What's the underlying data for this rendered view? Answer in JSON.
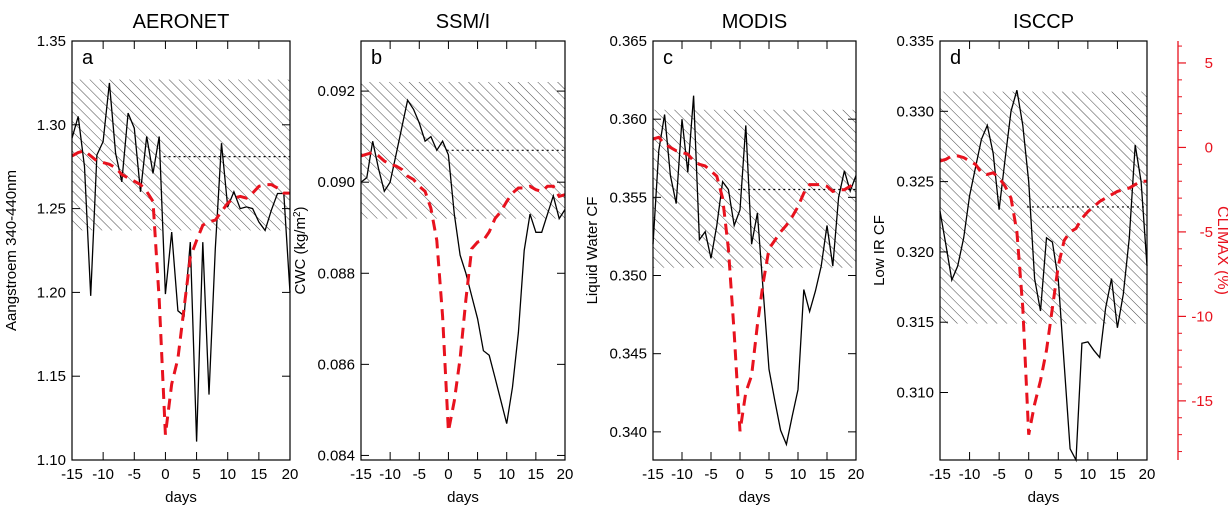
{
  "figure": {
    "colors": {
      "axis": "#000000",
      "series_data": "#000000",
      "climax": "#e8121e",
      "hatch": "#333333"
    },
    "right_axis": {
      "label": "CLIMAX (%)",
      "ticks": [
        5,
        0,
        -5,
        -10,
        -15
      ],
      "ylim": [
        -18.5,
        6.3
      ]
    }
  },
  "chart_data": [
    {
      "type": "line",
      "title": "AERONET",
      "panel_letter": "a",
      "xlabel": "days",
      "ylabel": "Aangstroem 340-440nm",
      "xlim": [
        -15,
        20
      ],
      "ylim": [
        1.1,
        1.35
      ],
      "xticks": [
        "-15",
        "-10",
        "-5",
        "0",
        "5",
        "10",
        "15",
        "20"
      ],
      "xtick_values": [
        -15,
        -10,
        -5,
        0,
        5,
        10,
        15,
        20
      ],
      "yticks": [
        "1.10",
        "1.15",
        "1.20",
        "1.25",
        "1.30",
        "1.35"
      ],
      "ytick_values": [
        1.1,
        1.15,
        1.2,
        1.25,
        1.3,
        1.35
      ],
      "band": [
        1.237,
        1.327
      ],
      "mean_line": 1.281,
      "x": [
        -15,
        -14,
        -13,
        -12,
        -11,
        -10,
        -9,
        -8,
        -7,
        -6,
        -5,
        -4,
        -3,
        -2,
        -1,
        0,
        1,
        2,
        3,
        4,
        5,
        6,
        7,
        8,
        9,
        10,
        11,
        12,
        13,
        14,
        15,
        16,
        17,
        18,
        19,
        20
      ],
      "series": [
        {
          "values": [
            1.292,
            1.305,
            1.275,
            1.198,
            1.282,
            1.29,
            1.325,
            1.283,
            1.266,
            1.307,
            1.298,
            1.26,
            1.293,
            1.271,
            1.293,
            1.199,
            1.236,
            1.189,
            1.186,
            1.23,
            1.111,
            1.23,
            1.139,
            1.226,
            1.289,
            1.251,
            1.26,
            1.25,
            1.251,
            1.25,
            1.242,
            1.237,
            1.249,
            1.259,
            1.259,
            1.2
          ]
        },
        {
          "name": "CLIMAX",
          "axis": "right",
          "values": [
            -0.5,
            -0.3,
            -0.2,
            -0.5,
            -0.8,
            -0.9,
            -1.0,
            -1.2,
            -1.6,
            -1.8,
            -2.0,
            -2.2,
            -2.6,
            -3.2,
            -9.0,
            -17.0,
            -14.0,
            -12.5,
            -9.5,
            -6.5,
            -5.5,
            -4.6,
            -4.4,
            -4.3,
            -3.8,
            -3.3,
            -3.0,
            -2.9,
            -3.0,
            -2.7,
            -2.3,
            -2.2,
            -2.2,
            -2.4,
            -2.7,
            -2.7
          ]
        }
      ]
    },
    {
      "type": "line",
      "title": "SSM/I",
      "panel_letter": "b",
      "xlabel": "days",
      "ylabel": "CWC (kg/m",
      "ylabel_sup": "2",
      "ylabel_end": ")",
      "xlim": [
        -15,
        20
      ],
      "ylim": [
        0.0839,
        0.0931
      ],
      "xticks": [
        "-15",
        "-10",
        "-5",
        "0",
        "5",
        "10",
        "15",
        "20"
      ],
      "xtick_values": [
        -15,
        -10,
        -5,
        0,
        5,
        10,
        15,
        20
      ],
      "yticks": [
        "0.084",
        "0.086",
        "0.088",
        "0.090",
        "0.092"
      ],
      "ytick_values": [
        0.084,
        0.086,
        0.088,
        0.09,
        0.092
      ],
      "band": [
        0.0892,
        0.0922
      ],
      "mean_line": 0.0907,
      "x": [
        -15,
        -14,
        -13,
        -12,
        -11,
        -10,
        -9,
        -8,
        -7,
        -6,
        -5,
        -4,
        -3,
        -2,
        -1,
        0,
        1,
        2,
        3,
        4,
        5,
        6,
        7,
        8,
        9,
        10,
        11,
        12,
        13,
        14,
        15,
        16,
        17,
        18,
        19,
        20
      ],
      "series": [
        {
          "values": [
            0.09,
            0.0901,
            0.0909,
            0.0903,
            0.0898,
            0.09,
            0.0906,
            0.0912,
            0.0918,
            0.0916,
            0.0913,
            0.0909,
            0.091,
            0.0907,
            0.0909,
            0.0906,
            0.0893,
            0.0884,
            0.088,
            0.0875,
            0.087,
            0.0863,
            0.0862,
            0.0857,
            0.0852,
            0.0847,
            0.0855,
            0.0867,
            0.0885,
            0.0893,
            0.0889,
            0.0889,
            0.0893,
            0.0897,
            0.0892,
            0.0894
          ]
        },
        {
          "name": "CLIMAX",
          "axis": "right",
          "values": [
            -0.5,
            -0.4,
            -0.3,
            -0.5,
            -0.8,
            -1.0,
            -1.1,
            -1.3,
            -1.7,
            -1.9,
            -2.3,
            -2.6,
            -3.6,
            -5.5,
            -10.0,
            -16.8,
            -15.0,
            -12.5,
            -9.0,
            -6.0,
            -5.6,
            -5.5,
            -5.0,
            -4.2,
            -3.8,
            -3.2,
            -2.7,
            -2.4,
            -2.4,
            -2.3,
            -2.5,
            -2.6,
            -2.3,
            -2.3,
            -2.9,
            -2.8
          ]
        }
      ]
    },
    {
      "type": "line",
      "title": "MODIS",
      "panel_letter": "c",
      "xlabel": "days",
      "ylabel": "Liquid Water CF",
      "xlim": [
        -15,
        20
      ],
      "ylim": [
        0.3382,
        0.365
      ],
      "xticks": [
        "-15",
        "-10",
        "-5",
        "0",
        "5",
        "10",
        "15",
        "20"
      ],
      "xtick_values": [
        -15,
        -10,
        -5,
        0,
        5,
        10,
        15,
        20
      ],
      "yticks": [
        "0.340",
        "0.345",
        "0.350",
        "0.355",
        "0.360",
        "0.365"
      ],
      "ytick_values": [
        0.34,
        0.345,
        0.35,
        0.355,
        0.36,
        0.365
      ],
      "band": [
        0.3505,
        0.3606
      ],
      "mean_line": 0.3555,
      "x": [
        -15,
        -14,
        -13,
        -12,
        -11,
        -10,
        -9,
        -8,
        -7,
        -6,
        -5,
        -4,
        -3,
        -2,
        -1,
        0,
        1,
        2,
        3,
        4,
        5,
        6,
        7,
        8,
        9,
        10,
        11,
        12,
        13,
        14,
        15,
        16,
        17,
        18,
        19,
        20
      ],
      "series": [
        {
          "values": [
            0.352,
            0.358,
            0.3603,
            0.3564,
            0.3546,
            0.36,
            0.3566,
            0.3615,
            0.3523,
            0.3528,
            0.3511,
            0.3532,
            0.356,
            0.3555,
            0.3532,
            0.3542,
            0.3596,
            0.352,
            0.354,
            0.349,
            0.344,
            0.342,
            0.3401,
            0.3392,
            0.341,
            0.3427,
            0.3491,
            0.3477,
            0.349,
            0.3506,
            0.3532,
            0.3506,
            0.355,
            0.3567,
            0.3554,
            0.3564
          ]
        },
        {
          "name": "CLIMAX",
          "axis": "right",
          "values": [
            0.5,
            0.6,
            0.2,
            0.0,
            -0.2,
            -0.3,
            -0.4,
            -0.8,
            -1.0,
            -1.1,
            -1.4,
            -1.7,
            -3.0,
            -6.0,
            -11.0,
            -16.8,
            -14.5,
            -13.5,
            -10.5,
            -8.0,
            -6.0,
            -5.5,
            -5.0,
            -4.6,
            -4.1,
            -3.5,
            -2.7,
            -2.2,
            -2.2,
            -2.2,
            -2.3,
            -2.6,
            -2.5,
            -2.5,
            -2.3,
            -2.0
          ]
        }
      ]
    },
    {
      "type": "line",
      "title": "ISCCP",
      "panel_letter": "d",
      "xlabel": "days",
      "ylabel": "Low IR CF",
      "xlim": [
        -15,
        20
      ],
      "ylim": [
        0.3052,
        0.335
      ],
      "xticks": [
        "-15",
        "-10",
        "-5",
        "0",
        "5",
        "10",
        "15",
        "20"
      ],
      "xtick_values": [
        -15,
        -10,
        -5,
        0,
        5,
        10,
        15,
        20
      ],
      "yticks": [
        "0.310",
        "0.315",
        "0.320",
        "0.325",
        "0.330",
        "0.335"
      ],
      "ytick_values": [
        0.31,
        0.315,
        0.32,
        0.325,
        0.33,
        0.335
      ],
      "band": [
        0.3149,
        0.3314
      ],
      "mean_line": 0.3232,
      "x": [
        -15,
        -14,
        -13,
        -12,
        -11,
        -10,
        -9,
        -8,
        -7,
        -6,
        -5,
        -4,
        -3,
        -2,
        -1,
        0,
        1,
        2,
        3,
        4,
        5,
        6,
        7,
        8,
        9,
        10,
        11,
        12,
        13,
        14,
        15,
        16,
        17,
        18,
        19,
        20
      ],
      "series": [
        {
          "values": [
            0.3229,
            0.3205,
            0.318,
            0.319,
            0.321,
            0.324,
            0.326,
            0.328,
            0.329,
            0.327,
            0.323,
            0.3266,
            0.33,
            0.3315,
            0.329,
            0.325,
            0.3181,
            0.3158,
            0.321,
            0.3207,
            0.318,
            0.312,
            0.306,
            0.3052,
            0.3135,
            0.3136,
            0.313,
            0.3125,
            0.316,
            0.3181,
            0.3146,
            0.317,
            0.321,
            0.3276,
            0.325,
            0.319
          ]
        },
        {
          "name": "CLIMAX",
          "axis": "right",
          "values": [
            -0.8,
            -0.7,
            -0.5,
            -0.5,
            -0.6,
            -0.8,
            -1.0,
            -1.5,
            -1.6,
            -1.5,
            -1.8,
            -2.3,
            -3.0,
            -5.0,
            -9.5,
            -17.0,
            -15.2,
            -13.8,
            -12.0,
            -9.5,
            -7.0,
            -5.5,
            -5.0,
            -4.8,
            -4.2,
            -3.8,
            -3.5,
            -3.2,
            -3.0,
            -2.8,
            -2.6,
            -2.5,
            -2.4,
            -2.2,
            -2.0,
            -2.0
          ]
        }
      ]
    }
  ]
}
